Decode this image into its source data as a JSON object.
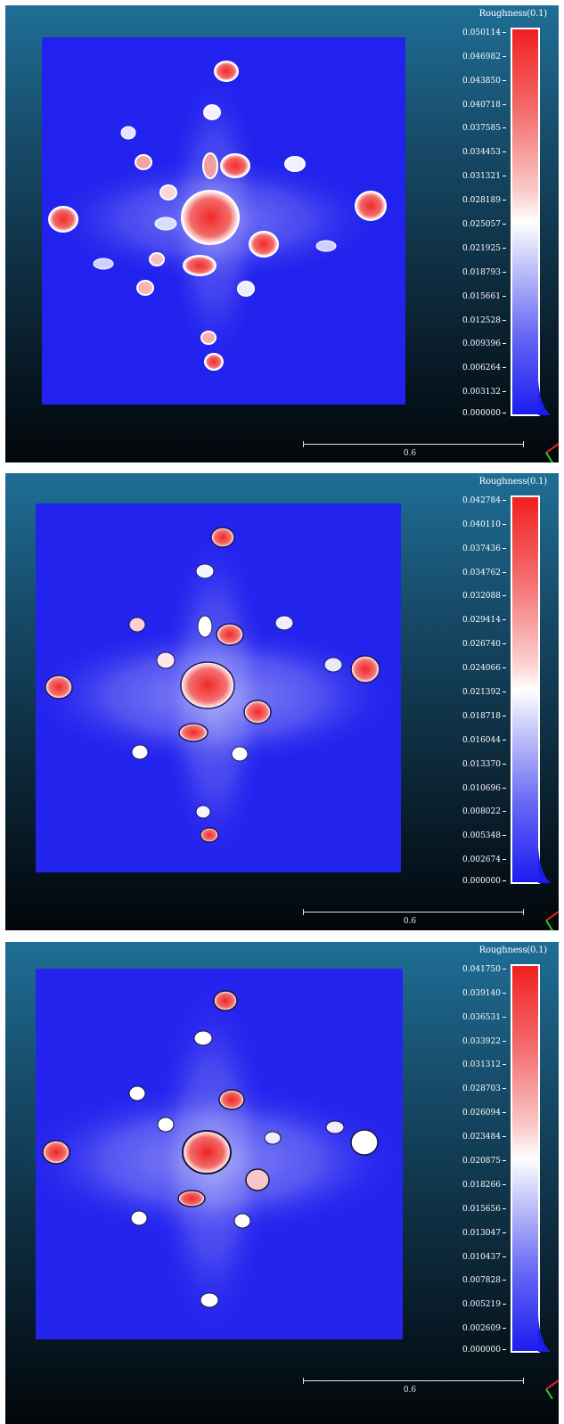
{
  "panels": [
    {
      "colorbar_title": "Roughness(0.1)",
      "ticks": [
        "0.050114",
        "0.046982",
        "0.043850",
        "0.040718",
        "0.037585",
        "0.034453",
        "0.031321",
        "0.028189",
        "0.025057",
        "0.021925",
        "0.018793",
        "0.015661",
        "0.012528",
        "0.009396",
        "0.006264",
        "0.003132",
        "0.000000"
      ],
      "scale_label": "0.6",
      "style": "detailed"
    },
    {
      "colorbar_title": "Roughness(0.1)",
      "ticks": [
        "0.042784",
        "0.040110",
        "0.037436",
        "0.034762",
        "0.032088",
        "0.029414",
        "0.026740",
        "0.024066",
        "0.021392",
        "0.018718",
        "0.016044",
        "0.013370",
        "0.010696",
        "0.008022",
        "0.005348",
        "0.002674",
        "0.000000"
      ],
      "scale_label": "0.6",
      "style": "smooth"
    },
    {
      "colorbar_title": "Roughness(0.1)",
      "ticks": [
        "0.041750",
        "0.039140",
        "0.036531",
        "0.033922",
        "0.031312",
        "0.028703",
        "0.026094",
        "0.023484",
        "0.020875",
        "0.018266",
        "0.015656",
        "0.013047",
        "0.010437",
        "0.007828",
        "0.005219",
        "0.002609",
        "0.000000"
      ],
      "scale_label": "0.6",
      "style": "smoothest"
    }
  ],
  "colors": {
    "low": "#1c1cf0",
    "mid": "#ffffff",
    "high": "#f02020"
  }
}
